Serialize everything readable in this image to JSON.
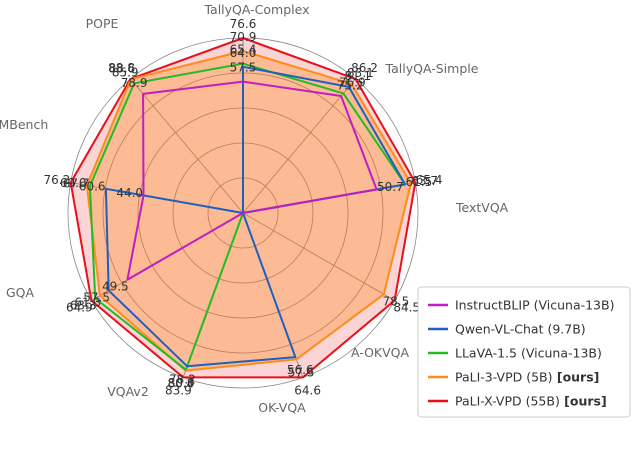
{
  "chart_data": {
    "type": "radar",
    "axes": [
      "TallyQA-Complex",
      "TallyQA-Simple",
      "TextVQA",
      "A-OKVQA",
      "OK-VQA",
      "VQAv2",
      "GQA",
      "MMBench",
      "POPE"
    ],
    "series": [
      {
        "name": "InstructBLIP",
        "suffix": "(Vicuna-13B)",
        "ours": "",
        "color": "#c21cc2",
        "values": [
          57.5,
          75.2,
          50.7,
          null,
          null,
          null,
          49.5,
          44.0,
          78.9
        ],
        "labels": [
          "57.5",
          "75.2",
          "50.7",
          "",
          "",
          "",
          "49.5",
          "44.0",
          "78.9"
        ]
      },
      {
        "name": "Qwen-VL-Chat",
        "suffix": "(9.7B)",
        "ours": "",
        "color": "#1f5fbf",
        "values": [
          64.0,
          81.1,
          61.5,
          null,
          56.6,
          78.2,
          57.5,
          60.6,
          null
        ],
        "labels": [
          "64.0",
          "81.1",
          "61.5",
          "",
          "56.6",
          "78.2",
          "57.5",
          "60.6",
          ""
        ]
      },
      {
        "name": "LLaVA-1.5",
        "suffix": "(Vicuna-13B)",
        "ours": "",
        "color": "#22bb22",
        "values": [
          65.4,
          76.9,
          61.5,
          null,
          null,
          80.0,
          63.3,
          67.7,
          85.9
        ],
        "labels": [
          "65.4",
          "76.9",
          "",
          "",
          "",
          "80.0",
          "63.3",
          "67.7",
          "85.9"
        ]
      },
      {
        "name": "PaLI-3-VPD",
        "suffix": "(5B)",
        "ours": "[ours]",
        "color": "#ff8c1a",
        "values": [
          70.9,
          83.1,
          63.7,
          78.5,
          57.5,
          80.4,
          61.3,
          69.0,
          88.6
        ],
        "labels": [
          "70.9",
          "83.1",
          "63.7",
          "78.5",
          "57.5",
          "80.4",
          "61.3",
          "69.0",
          "88.6"
        ]
      },
      {
        "name": "PaLI-X-VPD",
        "suffix": "(55B)",
        "ours": "[ours]",
        "color": "#e8101a",
        "values": [
          76.6,
          86.2,
          65.4,
          84.5,
          64.6,
          83.9,
          64.9,
          76.2,
          88.8
        ],
        "labels": [
          "76.6",
          "86.2",
          "65.4",
          "84.5",
          "64.6",
          "83.9",
          "64.9",
          "76.2",
          "88.8"
        ]
      }
    ],
    "legend_position": "bottom-right",
    "grid": true
  }
}
